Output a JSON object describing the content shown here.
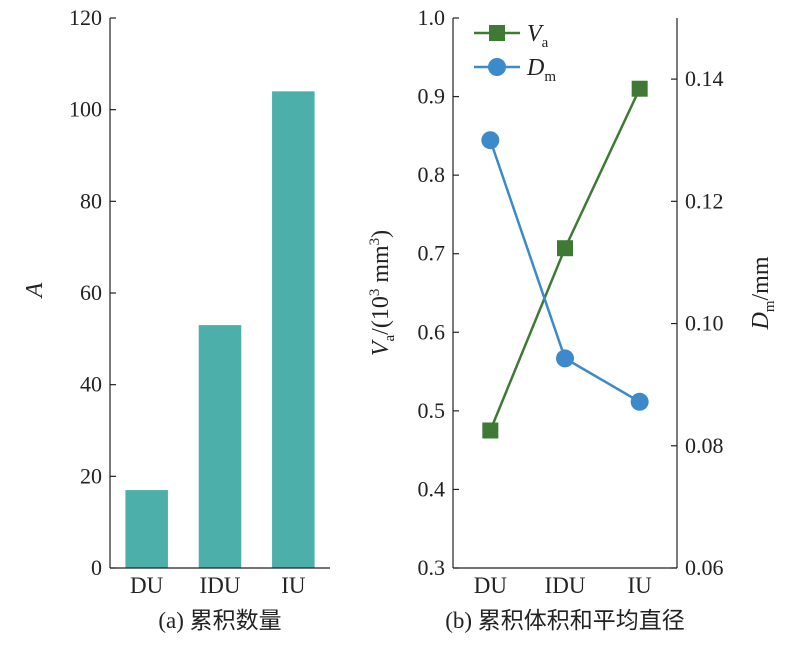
{
  "chart_data": [
    {
      "type": "bar",
      "caption": "(a) 累积数量",
      "categories": [
        "DU",
        "IDU",
        "IU"
      ],
      "values": [
        17,
        53,
        104
      ],
      "ylabel": "A",
      "ylim": [
        0,
        120
      ],
      "yticks": [
        "0",
        "20",
        "40",
        "60",
        "80",
        "100",
        "120"
      ],
      "bar_color": "#4DAFA9",
      "grid": false
    },
    {
      "type": "line",
      "caption": "(b) 累积体积和平均直径",
      "categories": [
        "DU",
        "IDU",
        "IU"
      ],
      "series": [
        {
          "name": "V",
          "name_sub": "a",
          "axis": "left",
          "marker": "square",
          "color": "#3F7A35",
          "values": [
            0.475,
            0.707,
            0.91
          ]
        },
        {
          "name": "D",
          "name_sub": "m",
          "axis": "right",
          "marker": "circle",
          "color": "#3C8AC9",
          "values": [
            0.13,
            0.0943,
            0.0872
          ]
        }
      ],
      "ylabel_left": {
        "var": "V",
        "sub": "a",
        "text": "/(10",
        "sup": "3",
        "unit": " mm",
        "unit_sup": "3",
        "close": ")"
      },
      "ylabel_right": {
        "var": "D",
        "sub": "m",
        "text": "/mm"
      },
      "ylim_left": [
        0.3,
        1.0
      ],
      "yticks_left": [
        "0.3",
        "0.4",
        "0.5",
        "0.6",
        "0.7",
        "0.8",
        "0.9",
        "1.0"
      ],
      "ylim_right": [
        0.06,
        0.15
      ],
      "yticks_right": [
        "0.06",
        "0.08",
        "0.10",
        "0.12",
        "0.14"
      ],
      "legend_position": "top-left",
      "grid": false
    }
  ]
}
